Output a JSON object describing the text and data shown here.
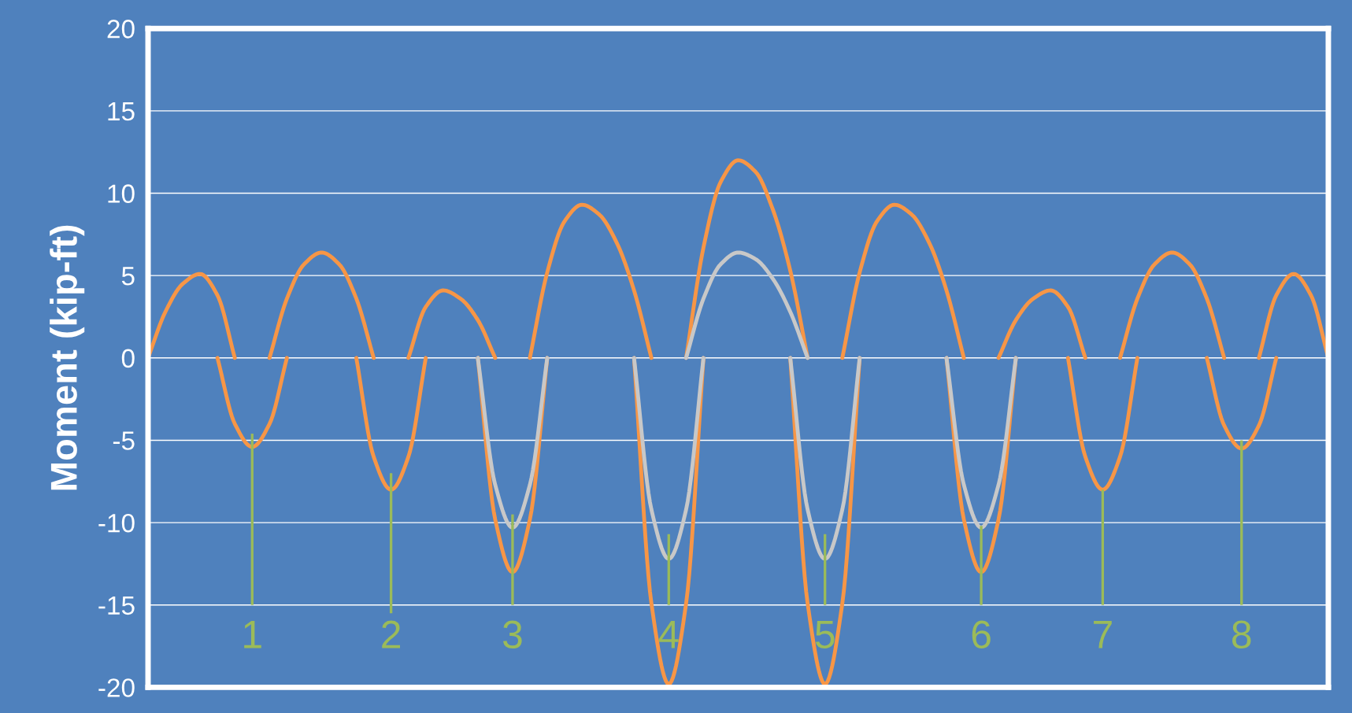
{
  "chart_data": {
    "type": "line",
    "ylabel": "Moment (kip-ft)",
    "categories": [
      null,
      null,
      null,
      null,
      null,
      null,
      "1",
      null,
      null,
      null,
      null,
      null,
      null,
      null,
      "2",
      null,
      null,
      null,
      null,
      null,
      null,
      "3",
      null,
      null,
      null,
      null,
      null,
      null,
      null,
      null,
      "4",
      null,
      null,
      null,
      null,
      null,
      null,
      null,
      null,
      "5",
      null,
      null,
      null,
      null,
      null,
      null,
      null,
      null,
      "6",
      null,
      null,
      null,
      null,
      null,
      null,
      "7",
      null,
      null,
      null,
      null,
      null,
      null,
      null,
      "8",
      null,
      null,
      null,
      null,
      null
    ],
    "series": [
      {
        "color": "#f79646",
        "values": [
          0,
          2.8,
          4.5,
          5.1,
          3.8,
          0,
          null,
          0,
          3.6,
          5.7,
          6.4,
          5.7,
          3.6,
          0,
          null,
          0,
          3.1,
          4.1,
          3.6,
          2.3,
          0,
          null,
          0,
          5.2,
          8.3,
          9.3,
          8.7,
          7.0,
          4.1,
          0,
          null,
          0,
          6.7,
          10.7,
          12.0,
          11.3,
          9.0,
          5.3,
          0,
          null,
          0,
          5.2,
          8.3,
          9.3,
          8.7,
          7.0,
          4.1,
          0,
          null,
          0,
          2.3,
          3.6,
          4.1,
          3.1,
          0,
          null,
          0,
          3.6,
          5.7,
          6.4,
          5.7,
          3.6,
          0,
          null,
          0,
          3.8,
          5.1,
          3.8,
          0
        ]
      },
      {
        "color": "#f79646",
        "values": [
          null,
          null,
          null,
          null,
          0,
          -4.0,
          -5.4,
          -4.0,
          0,
          null,
          null,
          null,
          0,
          -6.0,
          -8.0,
          -6.0,
          0,
          null,
          null,
          0,
          -9.8,
          -13.0,
          -9.8,
          0,
          null,
          null,
          null,
          null,
          0,
          -14.9,
          -19.8,
          -14.9,
          0,
          null,
          null,
          null,
          null,
          0,
          -14.9,
          -19.8,
          -14.9,
          0,
          null,
          null,
          null,
          null,
          0,
          -9.8,
          -13.0,
          -9.8,
          0,
          null,
          null,
          0,
          -6.0,
          -8.0,
          -6.0,
          0,
          null,
          null,
          null,
          0,
          -4.1,
          -5.5,
          -4.1,
          0,
          null,
          null,
          null
        ]
      },
      {
        "color": "#c8c8c8",
        "values": [
          null,
          null,
          null,
          null,
          null,
          null,
          null,
          null,
          null,
          null,
          null,
          null,
          null,
          null,
          null,
          null,
          null,
          null,
          null,
          null,
          null,
          null,
          null,
          null,
          null,
          null,
          null,
          null,
          null,
          null,
          null,
          0,
          3.6,
          5.7,
          6.4,
          6.0,
          4.8,
          2.8,
          0,
          null,
          null,
          null,
          null,
          null,
          null,
          null,
          null,
          null,
          null,
          null,
          null,
          null,
          null,
          null,
          null,
          null,
          null,
          null,
          null,
          null,
          null,
          null,
          null,
          null,
          null,
          null,
          null,
          null,
          null
        ]
      },
      {
        "color": "#c8c8c8",
        "values": [
          null,
          null,
          null,
          null,
          null,
          null,
          null,
          null,
          null,
          null,
          null,
          null,
          null,
          null,
          null,
          null,
          null,
          null,
          null,
          0,
          -7.7,
          -10.3,
          -7.7,
          0,
          null,
          null,
          null,
          null,
          0,
          -9.2,
          -12.2,
          -9.2,
          0,
          null,
          null,
          null,
          null,
          0,
          -9.2,
          -12.2,
          -9.2,
          0,
          null,
          null,
          null,
          null,
          0,
          -7.7,
          -10.3,
          -7.7,
          0,
          null,
          null,
          null,
          null,
          null,
          null,
          null,
          null,
          null,
          null,
          null,
          null,
          null,
          null,
          null,
          null,
          null,
          null
        ]
      },
      {
        "type": "bar",
        "color": "#9bbb59",
        "base": [
          null,
          null,
          null,
          null,
          null,
          null,
          -15,
          null,
          null,
          null,
          null,
          null,
          null,
          null,
          -15.5,
          null,
          null,
          null,
          null,
          null,
          null,
          -15,
          null,
          null,
          null,
          null,
          null,
          null,
          null,
          null,
          -15,
          null,
          null,
          null,
          null,
          null,
          null,
          null,
          null,
          -15,
          null,
          null,
          null,
          null,
          null,
          null,
          null,
          null,
          -15,
          null,
          null,
          null,
          null,
          null,
          null,
          -15,
          null,
          null,
          null,
          null,
          null,
          null,
          null,
          -15,
          null,
          null,
          null,
          null,
          null
        ],
        "values": [
          null,
          null,
          null,
          null,
          null,
          null,
          10.4,
          null,
          null,
          null,
          null,
          null,
          null,
          null,
          8.5,
          null,
          null,
          null,
          null,
          null,
          null,
          5.5,
          null,
          null,
          null,
          null,
          null,
          null,
          null,
          null,
          4.3,
          null,
          null,
          null,
          null,
          null,
          null,
          null,
          null,
          4.3,
          null,
          null,
          null,
          null,
          null,
          null,
          null,
          null,
          4.8,
          null,
          null,
          null,
          null,
          null,
          null,
          7.0,
          null,
          null,
          null,
          null,
          null,
          null,
          null,
          10.0,
          null,
          null,
          null,
          null,
          null
        ]
      }
    ],
    "ylim": [
      -20,
      20
    ],
    "yticks": [
      -20,
      -15,
      -10,
      -5,
      0,
      5,
      10,
      15,
      20
    ],
    "grid": "y",
    "line_style": "solid",
    "marker": "none"
  }
}
